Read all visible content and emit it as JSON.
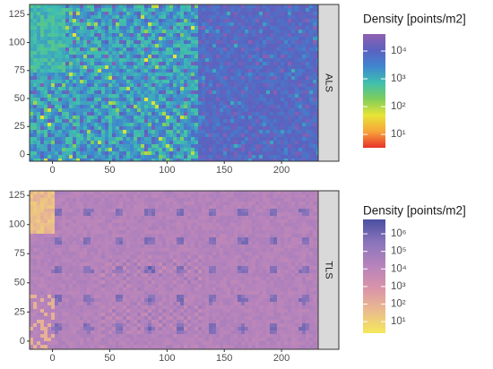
{
  "chart_data": [
    {
      "type": "raster",
      "facet": "ALS",
      "xlim": [
        -20,
        232
      ],
      "ylim": [
        -6,
        134
      ],
      "xticks": [
        0,
        50,
        100,
        150,
        200
      ],
      "yticks": [
        0,
        25,
        50,
        75,
        100,
        125
      ],
      "colorbar": {
        "title": "Density [points/m2]",
        "log": true,
        "clim": [
          3.3,
          41000
        ],
        "colors": [
          "#e8322a",
          "#f7a43a",
          "#e7e437",
          "#7fce5a",
          "#3fbfae",
          "#3f86cf",
          "#5a62c0",
          "#9060b0"
        ],
        "ticks": [
          {
            "value": 10,
            "label": "10¹"
          },
          {
            "value": 100,
            "label": "10²"
          },
          {
            "value": 1000,
            "label": "10³"
          },
          {
            "value": 10000,
            "label": "10⁴"
          }
        ]
      }
    },
    {
      "type": "raster",
      "facet": "TLS",
      "xlim": [
        -20,
        232
      ],
      "ylim": [
        -7,
        129
      ],
      "xticks": [
        0,
        50,
        100,
        150,
        200
      ],
      "yticks": [
        0,
        25,
        50,
        75,
        100,
        125
      ],
      "colorbar": {
        "title": "Density [points/m2]",
        "log": true,
        "clim": [
          2.2,
          6600000
        ],
        "colors": [
          "#f5e85a",
          "#eabb8e",
          "#d993aa",
          "#b583bc",
          "#8a74bb",
          "#4a4fa0"
        ],
        "ticks": [
          {
            "value": 10,
            "label": "10¹"
          },
          {
            "value": 100,
            "label": "10²"
          },
          {
            "value": 1000,
            "label": "10³"
          },
          {
            "value": 10000,
            "label": "10⁴"
          },
          {
            "value": 100000,
            "label": "10⁵"
          },
          {
            "value": 1000000,
            "label": "10⁶"
          }
        ]
      }
    }
  ]
}
